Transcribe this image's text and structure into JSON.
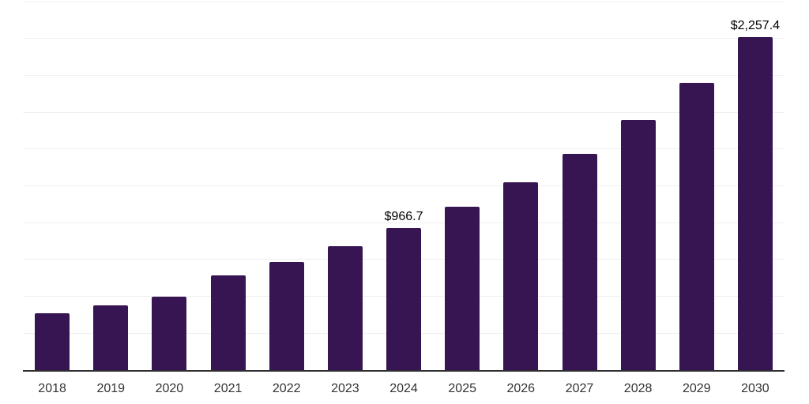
{
  "chart_data": {
    "type": "bar",
    "title": "",
    "xlabel": "",
    "ylabel": "",
    "categories": [
      "2018",
      "2019",
      "2020",
      "2021",
      "2022",
      "2023",
      "2024",
      "2025",
      "2026",
      "2027",
      "2028",
      "2029",
      "2030"
    ],
    "values": [
      385,
      440,
      500,
      645,
      735,
      840,
      966.7,
      1110,
      1273,
      1466,
      1695,
      1949,
      2257.4
    ],
    "annotations": [
      {
        "category": "2024",
        "text": "$966.7"
      },
      {
        "category": "2030",
        "text": "$2,257.4"
      }
    ],
    "ylim": [
      0,
      2500
    ],
    "gridline_step": 250,
    "grid": true,
    "y_tick_labels_visible": false,
    "legend": "none",
    "colors": {
      "bar": "#371553",
      "gridline": "#efefef",
      "axis_line": "#2d2d2d",
      "value_label_text": "#000000",
      "tick_label_text": "#333333",
      "background": "#ffffff"
    }
  }
}
